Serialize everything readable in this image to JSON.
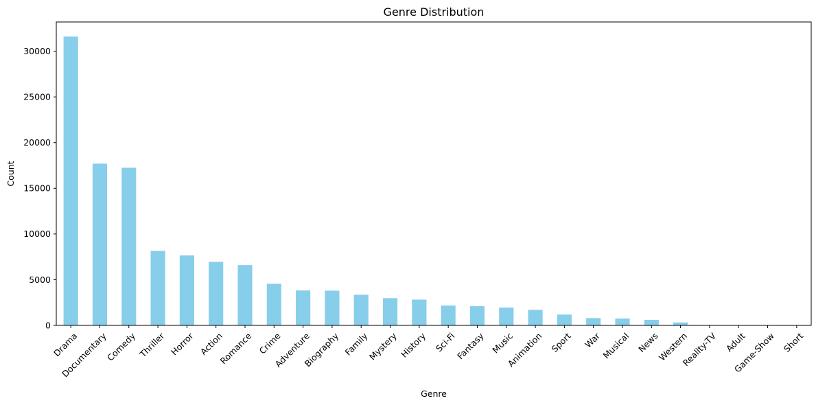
{
  "chart_data": {
    "type": "bar",
    "title": "Genre Distribution",
    "xlabel": "Genre",
    "ylabel": "Count",
    "ylim": [
      0,
      33200
    ],
    "yticks": [
      0,
      5000,
      10000,
      15000,
      20000,
      25000,
      30000
    ],
    "grid": false,
    "legend": "none",
    "bar_color": "#87ceeb",
    "categories": [
      "Drama",
      "Documentary",
      "Comedy",
      "Thriller",
      "Horror",
      "Action",
      "Romance",
      "Crime",
      "Adventure",
      "Biography",
      "Family",
      "Mystery",
      "History",
      "Sci-Fi",
      "Fantasy",
      "Music",
      "Animation",
      "Sport",
      "War",
      "Musical",
      "News",
      "Western",
      "Reality-TV",
      "Adult",
      "Game-Show",
      "Short"
    ],
    "values": [
      31600,
      17700,
      17250,
      8150,
      7650,
      6950,
      6600,
      4550,
      3820,
      3800,
      3350,
      2980,
      2820,
      2170,
      2100,
      1950,
      1700,
      1180,
      800,
      750,
      600,
      320,
      8,
      5,
      3,
      2
    ]
  }
}
